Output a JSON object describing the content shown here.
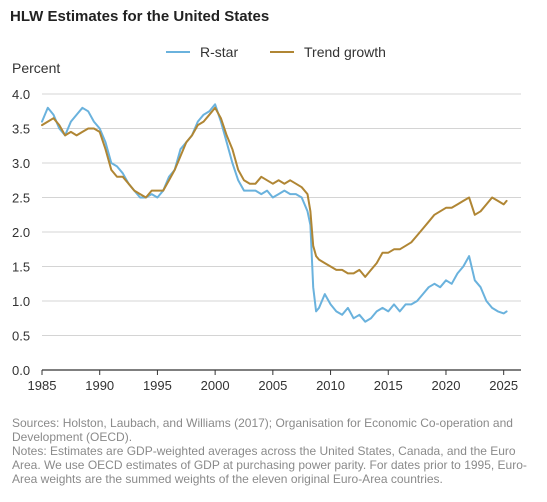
{
  "title": "HLW Estimates for the United States",
  "legend": {
    "rstar_label": "R-star",
    "trend_label": "Trend growth"
  },
  "ylabel": "Percent",
  "notes": {
    "sources": "Sources: Holston, Laubach, and Williams (2017); Organisation for Economic Co-operation and Development (OECD).",
    "notes": "Notes: Estimates are GDP-weighted averages across the United States, Canada, and the Euro Area. We use OECD estimates of GDP at purchasing power parity. For dates prior to 1995, Euro-Area weights are the summed weights of the eleven original Euro-Area countries."
  },
  "colors": {
    "rstar": "#6ab2dd",
    "trend": "#b08634",
    "grid": "#d4d4d4",
    "axis": "#333333"
  },
  "chart_data": {
    "type": "line",
    "xlabel": "",
    "ylabel": "Percent",
    "xlim": [
      1985,
      2026.5
    ],
    "ylim": [
      0,
      4.0
    ],
    "xticks": [
      "1985",
      "1990",
      "1995",
      "2000",
      "2005",
      "2010",
      "2015",
      "2020",
      "2025"
    ],
    "yticks": [
      "0.0",
      "0.5",
      "1.0",
      "1.5",
      "2.0",
      "2.5",
      "3.0",
      "3.5",
      "4.0"
    ],
    "grid": "horizontal",
    "legend": "top-center",
    "series": [
      {
        "name": "R-star",
        "x": [
          1985.0,
          1985.5,
          1986.0,
          1986.5,
          1987.0,
          1987.5,
          1988.0,
          1988.5,
          1989.0,
          1989.5,
          1990.0,
          1990.5,
          1991.0,
          1991.5,
          1992.0,
          1992.5,
          1993.0,
          1993.5,
          1994.0,
          1994.5,
          1995.0,
          1995.5,
          1996.0,
          1996.5,
          1997.0,
          1997.5,
          1998.0,
          1998.5,
          1999.0,
          1999.5,
          2000.0,
          2000.5,
          2001.0,
          2001.5,
          2002.0,
          2002.5,
          2003.0,
          2003.5,
          2004.0,
          2004.5,
          2005.0,
          2005.5,
          2006.0,
          2006.5,
          2007.0,
          2007.5,
          2008.0,
          2008.25,
          2008.5,
          2008.75,
          2009.0,
          2009.5,
          2010.0,
          2010.5,
          2011.0,
          2011.5,
          2012.0,
          2012.5,
          2013.0,
          2013.5,
          2014.0,
          2014.5,
          2015.0,
          2015.5,
          2016.0,
          2016.5,
          2017.0,
          2017.5,
          2018.0,
          2018.5,
          2019.0,
          2019.5,
          2020.0,
          2020.5,
          2021.0,
          2021.5,
          2022.0,
          2022.5,
          2023.0,
          2023.5,
          2024.0,
          2024.5,
          2025.0,
          2025.25
        ],
        "y": [
          3.6,
          3.8,
          3.7,
          3.5,
          3.4,
          3.6,
          3.7,
          3.8,
          3.75,
          3.6,
          3.5,
          3.3,
          3.0,
          2.95,
          2.85,
          2.7,
          2.6,
          2.5,
          2.5,
          2.55,
          2.5,
          2.6,
          2.8,
          2.9,
          3.2,
          3.3,
          3.4,
          3.6,
          3.7,
          3.75,
          3.85,
          3.6,
          3.3,
          3.0,
          2.75,
          2.6,
          2.6,
          2.6,
          2.55,
          2.6,
          2.5,
          2.55,
          2.6,
          2.55,
          2.55,
          2.5,
          2.3,
          2.1,
          1.2,
          0.85,
          0.9,
          1.1,
          0.95,
          0.85,
          0.8,
          0.9,
          0.75,
          0.8,
          0.7,
          0.75,
          0.85,
          0.9,
          0.85,
          0.95,
          0.85,
          0.95,
          0.95,
          1.0,
          1.1,
          1.2,
          1.25,
          1.2,
          1.3,
          1.25,
          1.4,
          1.5,
          1.65,
          1.3,
          1.2,
          1.0,
          0.9,
          0.85,
          0.82,
          0.85
        ]
      },
      {
        "name": "Trend growth",
        "x": [
          1985.0,
          1985.5,
          1986.0,
          1986.5,
          1987.0,
          1987.5,
          1988.0,
          1988.5,
          1989.0,
          1989.5,
          1990.0,
          1990.5,
          1991.0,
          1991.5,
          1992.0,
          1992.5,
          1993.0,
          1993.5,
          1994.0,
          1994.5,
          1995.0,
          1995.5,
          1996.0,
          1996.5,
          1997.0,
          1997.5,
          1998.0,
          1998.5,
          1999.0,
          1999.5,
          2000.0,
          2000.5,
          2001.0,
          2001.5,
          2002.0,
          2002.5,
          2003.0,
          2003.5,
          2004.0,
          2004.5,
          2005.0,
          2005.5,
          2006.0,
          2006.5,
          2007.0,
          2007.5,
          2008.0,
          2008.25,
          2008.5,
          2008.75,
          2009.0,
          2009.5,
          2010.0,
          2010.5,
          2011.0,
          2011.5,
          2012.0,
          2012.5,
          2013.0,
          2013.5,
          2014.0,
          2014.5,
          2015.0,
          2015.5,
          2016.0,
          2016.5,
          2017.0,
          2017.5,
          2018.0,
          2018.5,
          2019.0,
          2019.5,
          2020.0,
          2020.5,
          2021.0,
          2021.5,
          2022.0,
          2022.5,
          2023.0,
          2023.5,
          2024.0,
          2024.5,
          2025.0,
          2025.25
        ],
        "y": [
          3.55,
          3.6,
          3.65,
          3.55,
          3.4,
          3.45,
          3.4,
          3.45,
          3.5,
          3.5,
          3.45,
          3.2,
          2.9,
          2.8,
          2.8,
          2.7,
          2.6,
          2.55,
          2.5,
          2.6,
          2.6,
          2.6,
          2.75,
          2.9,
          3.1,
          3.3,
          3.4,
          3.55,
          3.6,
          3.7,
          3.8,
          3.65,
          3.4,
          3.2,
          2.9,
          2.75,
          2.7,
          2.7,
          2.8,
          2.75,
          2.7,
          2.75,
          2.7,
          2.75,
          2.7,
          2.65,
          2.55,
          2.3,
          1.8,
          1.65,
          1.6,
          1.55,
          1.5,
          1.45,
          1.45,
          1.4,
          1.4,
          1.45,
          1.35,
          1.45,
          1.55,
          1.7,
          1.7,
          1.75,
          1.75,
          1.8,
          1.85,
          1.95,
          2.05,
          2.15,
          2.25,
          2.3,
          2.35,
          2.35,
          2.4,
          2.45,
          2.5,
          2.25,
          2.3,
          2.4,
          2.5,
          2.45,
          2.4,
          2.45
        ]
      }
    ]
  }
}
